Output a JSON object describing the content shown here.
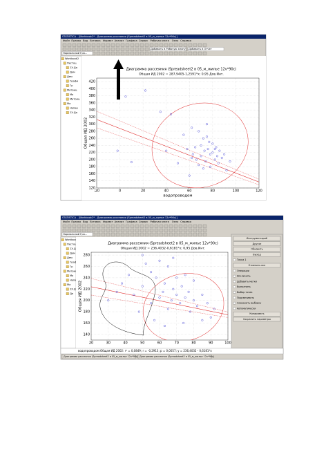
{
  "screens": [
    {
      "window_title": "STATISTICA - [Workbook2* - Диаграмма рассеяния (Spreadsheet2 в 05_м_жилье 12v*90c)]",
      "menu": [
        "Файл",
        "Правка",
        "Вид",
        "Вставка",
        "Формат",
        "Анализ",
        "Графика",
        "Сервис",
        "Рабочая книга",
        "Окно",
        "Справка"
      ],
      "toolbar": [
        "Добавить в Рабочую книгу",
        "Добавить в Отчет",
        "Нормальный Гра..."
      ],
      "tree": [
        "Workbook2",
        "Пестоц",
        "2Х.Да",
        "Дем",
        "Дем",
        "Графи",
        "Гр",
        "Матриц",
        "Ма",
        "Матриц",
        "Ма",
        "Непар",
        "2Х.Да"
      ],
      "chart": {
        "type": "scatter",
        "title": "Диаграмма рассеяния (Spreadsheet2 в 05_м_жилье 12v*90c)",
        "subtitle": "Общая ИД 2002 = 287,9405-1,2591*x; 0,95 Дов.Инт.",
        "x_label": "водопроводом",
        "y_label": "Общая ИД 2002",
        "color": "#3030d0",
        "fit_color": "#e03030",
        "fit": {
          "intercept": 287.9405,
          "slope": -1.2591
        },
        "x": [
          5,
          22,
          -2,
          10,
          35,
          44,
          40,
          55,
          58,
          60,
          62,
          63,
          65,
          66,
          68,
          70,
          70,
          72,
          73,
          74,
          75,
          76,
          77,
          78,
          78,
          80,
          80,
          82,
          83,
          84,
          85,
          86,
          88,
          90,
          92,
          95,
          75,
          68,
          72,
          82,
          62,
          50
        ],
        "values": [
          378,
          395,
          225,
          193,
          335,
          328,
          225,
          270,
          230,
          155,
          290,
          215,
          235,
          200,
          280,
          240,
          210,
          260,
          225,
          195,
          300,
          230,
          250,
          215,
          180,
          220,
          245,
          200,
          235,
          210,
          190,
          225,
          205,
          215,
          170,
          195,
          265,
          185,
          175,
          230,
          205,
          190
        ],
        "xlim": [
          -20,
          120
        ],
        "xticks": [
          -20,
          0,
          20,
          40,
          60,
          80,
          100,
          120
        ],
        "ylim": [
          120,
          430
        ],
        "yticks": [
          120,
          140,
          160,
          180,
          200,
          220,
          240,
          260,
          280,
          300,
          320,
          340,
          360,
          380,
          400,
          420
        ],
        "grid": true
      }
    },
    {
      "window_title": "STATISTICA - [Workbook2* - Диаграмма рассеяния (Spreadsheet2 в 05_м_жилье 12v*90c)]",
      "menu": [
        "Файл",
        "Правка",
        "Вид",
        "Вставка",
        "Формат",
        "Анализ",
        "Графика",
        "Сервис",
        "Рабочая книга",
        "Окно",
        "Справка"
      ],
      "toolbar": [
        "Нормальный Гра..."
      ],
      "tree": [
        "Workbook2",
        "Пестоц",
        "2Х.Да",
        "Дем",
        "Дем",
        "Графи",
        "Гр",
        "Матриц",
        "Ма",
        "Непар",
        "Ма",
        "2Х.Да",
        "Де"
      ],
      "dialog": [
        "Инструментарий",
        "Другое",
        "Обновить",
        "Выход",
        "Точка 1",
        "Отменить все",
        "Операции",
        "Исключить",
        "Добавить метки",
        "Выполнить",
        "Выбор точек",
        "Подсвечивать",
        "Сохранить выборку",
        "Автоматически",
        "Копировать",
        "Сохранить параметры"
      ],
      "status": "водопроводом:Общая ИД 2002:   r² = 0,0849;  r = -0,2913; p = 0,0057; y = 236,4032 - 0,6181*x",
      "taskbar": [
        "Диаграмма рассеяния (Spreadsheet2 в 05_м_жилье 12v*90c)",
        "Диаграмма рассеяния (Spreadsheet2 в 05_м_жилье 12v*90c)"
      ],
      "chart": {
        "type": "scatter",
        "title": "Диаграмма рассеяния (Spreadsheet2 в 05_м_жилье 12v*90c)",
        "subtitle": "Общая ИД 2002 = 236,4032-0,6181*x; 0,95 Дов.Инт.",
        "x_label": "",
        "y_label": "Общая ИД 2002",
        "color": "#3030d0",
        "fit_color": "#e03030",
        "fit": {
          "intercept": 236.4032,
          "slope": -0.6181
        },
        "x": [
          30,
          38,
          42,
          45,
          48,
          50,
          52,
          55,
          55,
          58,
          60,
          60,
          62,
          63,
          65,
          65,
          67,
          68,
          70,
          70,
          72,
          73,
          75,
          75,
          77,
          78,
          80,
          80,
          82,
          85,
          88,
          90,
          92,
          35,
          57,
          68,
          74,
          85,
          63,
          50
        ],
        "values": [
          200,
          230,
          245,
          210,
          180,
          225,
          265,
          250,
          195,
          240,
          270,
          205,
          215,
          230,
          185,
          260,
          200,
          220,
          240,
          210,
          195,
          225,
          205,
          245,
          215,
          180,
          200,
          235,
          190,
          210,
          195,
          170,
          185,
          215,
          165,
          275,
          160,
          165,
          155,
          280
        ],
        "xlim": [
          20,
          100
        ],
        "xticks": [
          20,
          30,
          40,
          50,
          60,
          70,
          80,
          90,
          100
        ],
        "ylim": [
          130,
          285
        ],
        "yticks": [
          140,
          160,
          180,
          200,
          220,
          240,
          260,
          280
        ],
        "grid": true
      }
    }
  ]
}
